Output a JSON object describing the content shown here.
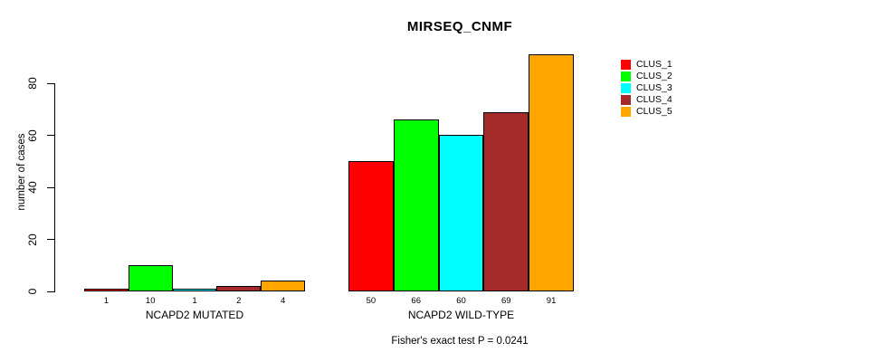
{
  "chart_data": {
    "type": "bar",
    "title": "MIRSEQ_CNMF",
    "ylabel": "number of cases",
    "xlabel": "",
    "annotation": "Fisher's exact test P = 0.0241",
    "ylim": [
      0,
      91
    ],
    "yticks": [
      0,
      20,
      40,
      60,
      80
    ],
    "grid": false,
    "legend_position": "right",
    "bar_value_labels": true,
    "categories": [
      "NCAPD2 MUTATED",
      "NCAPD2 WILD-TYPE"
    ],
    "series": [
      {
        "name": "CLUS_1",
        "color": "#ff0000",
        "values": [
          1,
          50
        ]
      },
      {
        "name": "CLUS_2",
        "color": "#00ff00",
        "values": [
          10,
          66
        ]
      },
      {
        "name": "CLUS_3",
        "color": "#00ffff",
        "values": [
          1,
          60
        ]
      },
      {
        "name": "CLUS_4",
        "color": "#a52a2a",
        "values": [
          2,
          69
        ]
      },
      {
        "name": "CLUS_5",
        "color": "#ffa500",
        "values": [
          4,
          91
        ]
      }
    ]
  }
}
